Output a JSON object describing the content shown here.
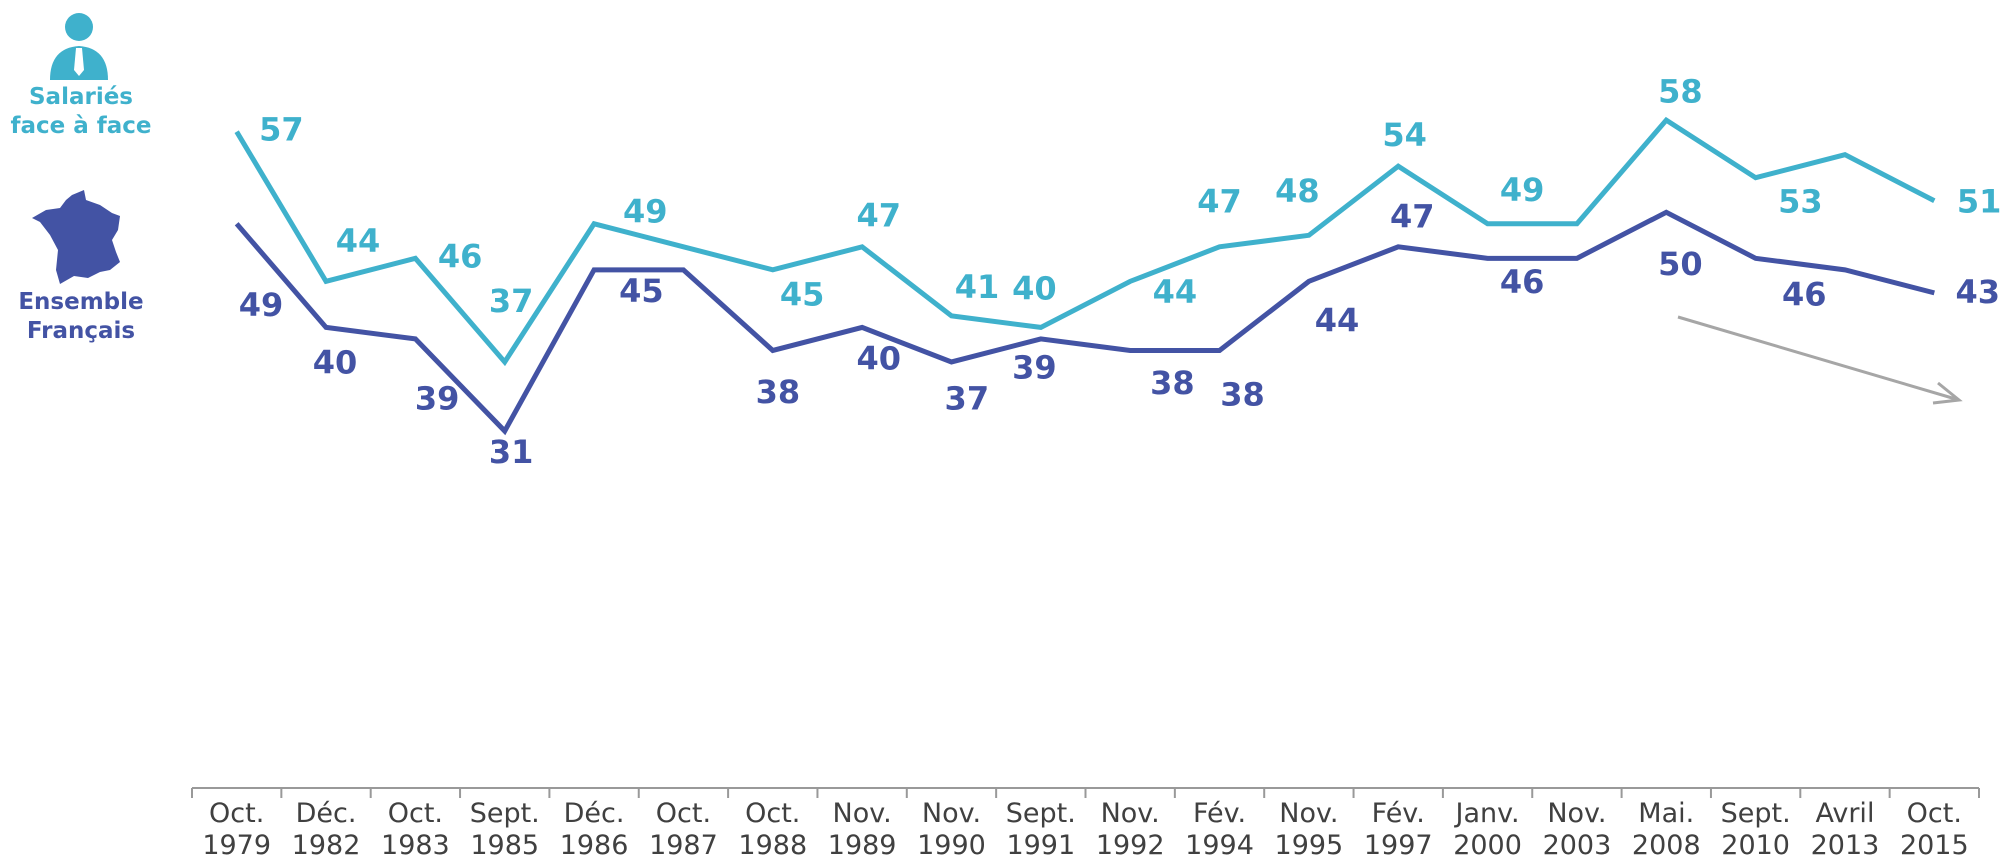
{
  "chart_data": {
    "type": "line",
    "categories": [
      "Oct. 1979",
      "Déc. 1982",
      "Oct. 1983",
      "Sept. 1985",
      "Déc. 1986",
      "Oct. 1987",
      "Oct. 1988",
      "Nov. 1989",
      "Nov. 1990",
      "Sept. 1991",
      "Nov. 1992",
      "Fév. 1994",
      "Nov. 1995",
      "Fév. 1997",
      "Janv. 2000",
      "Nov. 2003",
      "Mai. 2008",
      "Sept. 2010",
      "Avril 2013",
      "Oct. 2015"
    ],
    "series": [
      {
        "name": "Salariés face à face",
        "color": "#3fb1cc",
        "values": [
          57,
          44,
          46,
          37,
          49,
          47,
          45,
          47,
          41,
          40,
          44,
          47,
          48,
          54,
          49,
          49,
          58,
          53,
          55,
          51
        ],
        "value_labels": [
          57,
          44,
          46,
          37,
          49,
          null,
          45,
          47,
          41,
          40,
          44,
          47,
          48,
          54,
          49,
          null,
          58,
          53,
          null,
          51
        ]
      },
      {
        "name": "Ensemble Français",
        "color": "#4353a4",
        "values": [
          49,
          40,
          39,
          31,
          45,
          45,
          38,
          40,
          37,
          39,
          38,
          38,
          44,
          47,
          46,
          46,
          50,
          46,
          45,
          43
        ],
        "value_labels": [
          49,
          40,
          39,
          31,
          45,
          null,
          38,
          40,
          37,
          39,
          38,
          38,
          44,
          47,
          46,
          null,
          50,
          46,
          null,
          43
        ]
      }
    ],
    "ylim": [
      0,
      68
    ],
    "grid": false
  }
}
